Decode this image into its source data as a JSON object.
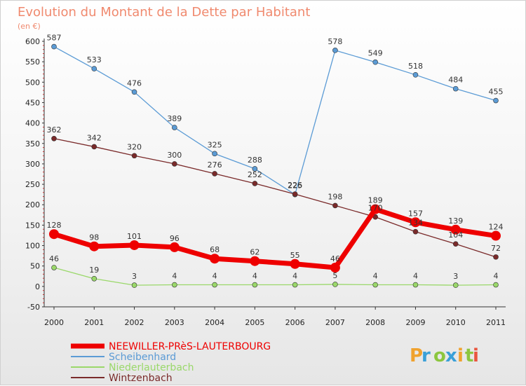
{
  "chart_data": {
    "type": "line",
    "title": "Evolution du Montant de la Dette par Habitant",
    "subtitle": "(en €)",
    "xlabel": "",
    "ylabel": "",
    "categories": [
      "2000",
      "2001",
      "2002",
      "2003",
      "2004",
      "2005",
      "2006",
      "2007",
      "2008",
      "2009",
      "2010",
      "2011"
    ],
    "ylim": [
      -50,
      600
    ],
    "yticks": [
      -50,
      0,
      50,
      100,
      150,
      200,
      250,
      300,
      350,
      400,
      450,
      500,
      550,
      600
    ],
    "grid": false,
    "legend_position": "bottom-left",
    "series": [
      {
        "name": "NEEWILLER-PRèS-LAUTERBOURG",
        "color": "#ee0000",
        "values": [
          128,
          98,
          101,
          96,
          68,
          62,
          55,
          46,
          189,
          157,
          139,
          124
        ],
        "emphasis": true
      },
      {
        "name": "Scheibenhard",
        "color": "#5b9bd5",
        "values": [
          587,
          533,
          476,
          389,
          325,
          288,
          225,
          578,
          549,
          518,
          484,
          455
        ]
      },
      {
        "name": "Niederlauterbach",
        "color": "#9ad86a",
        "values": [
          46,
          19,
          3,
          4,
          4,
          4,
          4,
          5,
          4,
          4,
          3,
          4
        ]
      },
      {
        "name": "Wintzenbach",
        "color": "#7a2a2a",
        "values": [
          362,
          342,
          320,
          300,
          276,
          252,
          226,
          198,
          170,
          134,
          104,
          72
        ]
      }
    ],
    "value_labels": [
      {
        "x": "2000",
        "y": 587,
        "text": "587"
      },
      {
        "x": "2001",
        "y": 533,
        "text": "533"
      },
      {
        "x": "2002",
        "y": 476,
        "text": "476"
      },
      {
        "x": "2003",
        "y": 389,
        "text": "389"
      },
      {
        "x": "2004",
        "y": 325,
        "text": "325"
      },
      {
        "x": "2005",
        "y": 288,
        "text": "288"
      },
      {
        "x": "2006",
        "y": 226,
        "text": "226"
      },
      {
        "x": "2006",
        "y": 225,
        "text": "225"
      },
      {
        "x": "2007",
        "y": 578,
        "text": "578"
      },
      {
        "x": "2008",
        "y": 549,
        "text": "549"
      },
      {
        "x": "2009",
        "y": 518,
        "text": "518"
      },
      {
        "x": "2010",
        "y": 484,
        "text": "484"
      },
      {
        "x": "2011",
        "y": 455,
        "text": "455"
      },
      {
        "x": "2000",
        "y": 362,
        "text": "362"
      },
      {
        "x": "2001",
        "y": 342,
        "text": "342"
      },
      {
        "x": "2002",
        "y": 320,
        "text": "320"
      },
      {
        "x": "2003",
        "y": 300,
        "text": "300"
      },
      {
        "x": "2004",
        "y": 276,
        "text": "276"
      },
      {
        "x": "2005",
        "y": 252,
        "text": "252"
      },
      {
        "x": "2007",
        "y": 198,
        "text": "198"
      },
      {
        "x": "2008",
        "y": 170,
        "text": "170"
      },
      {
        "x": "2009",
        "y": 134,
        "text": "134"
      },
      {
        "x": "2010",
        "y": 104,
        "text": "104"
      },
      {
        "x": "2011",
        "y": 72,
        "text": "72"
      },
      {
        "x": "2000",
        "y": 128,
        "text": "128"
      },
      {
        "x": "2001",
        "y": 98,
        "text": "98"
      },
      {
        "x": "2002",
        "y": 101,
        "text": "101"
      },
      {
        "x": "2003",
        "y": 96,
        "text": "96"
      },
      {
        "x": "2004",
        "y": 68,
        "text": "68"
      },
      {
        "x": "2005",
        "y": 62,
        "text": "62"
      },
      {
        "x": "2006",
        "y": 55,
        "text": "55"
      },
      {
        "x": "2007",
        "y": 46,
        "text": "46"
      },
      {
        "x": "2008",
        "y": 189,
        "text": "189"
      },
      {
        "x": "2009",
        "y": 157,
        "text": "157"
      },
      {
        "x": "2010",
        "y": 139,
        "text": "139"
      },
      {
        "x": "2011",
        "y": 124,
        "text": "124"
      },
      {
        "x": "2000",
        "y": 46,
        "text": "46"
      },
      {
        "x": "2001",
        "y": 19,
        "text": "19"
      },
      {
        "x": "2002",
        "y": 3,
        "text": "3"
      },
      {
        "x": "2003",
        "y": 4,
        "text": "4"
      },
      {
        "x": "2004",
        "y": 4,
        "text": "4"
      },
      {
        "x": "2005",
        "y": 4,
        "text": "4"
      },
      {
        "x": "2006",
        "y": 4,
        "text": "4"
      },
      {
        "x": "2007",
        "y": 5,
        "text": "5"
      },
      {
        "x": "2008",
        "y": 4,
        "text": "4"
      },
      {
        "x": "2009",
        "y": 4,
        "text": "4"
      },
      {
        "x": "2010",
        "y": 3,
        "text": "3"
      },
      {
        "x": "2011",
        "y": 4,
        "text": "4"
      }
    ]
  },
  "brand": {
    "letters": [
      "P",
      "r",
      "o",
      "x",
      "i",
      "t",
      "i"
    ],
    "colors": [
      "#f0a22e",
      "#3aa0d8",
      "#8cc63f",
      "#3aa0d8",
      "#f0a22e",
      "#8cc63f",
      "#e9553f"
    ]
  }
}
